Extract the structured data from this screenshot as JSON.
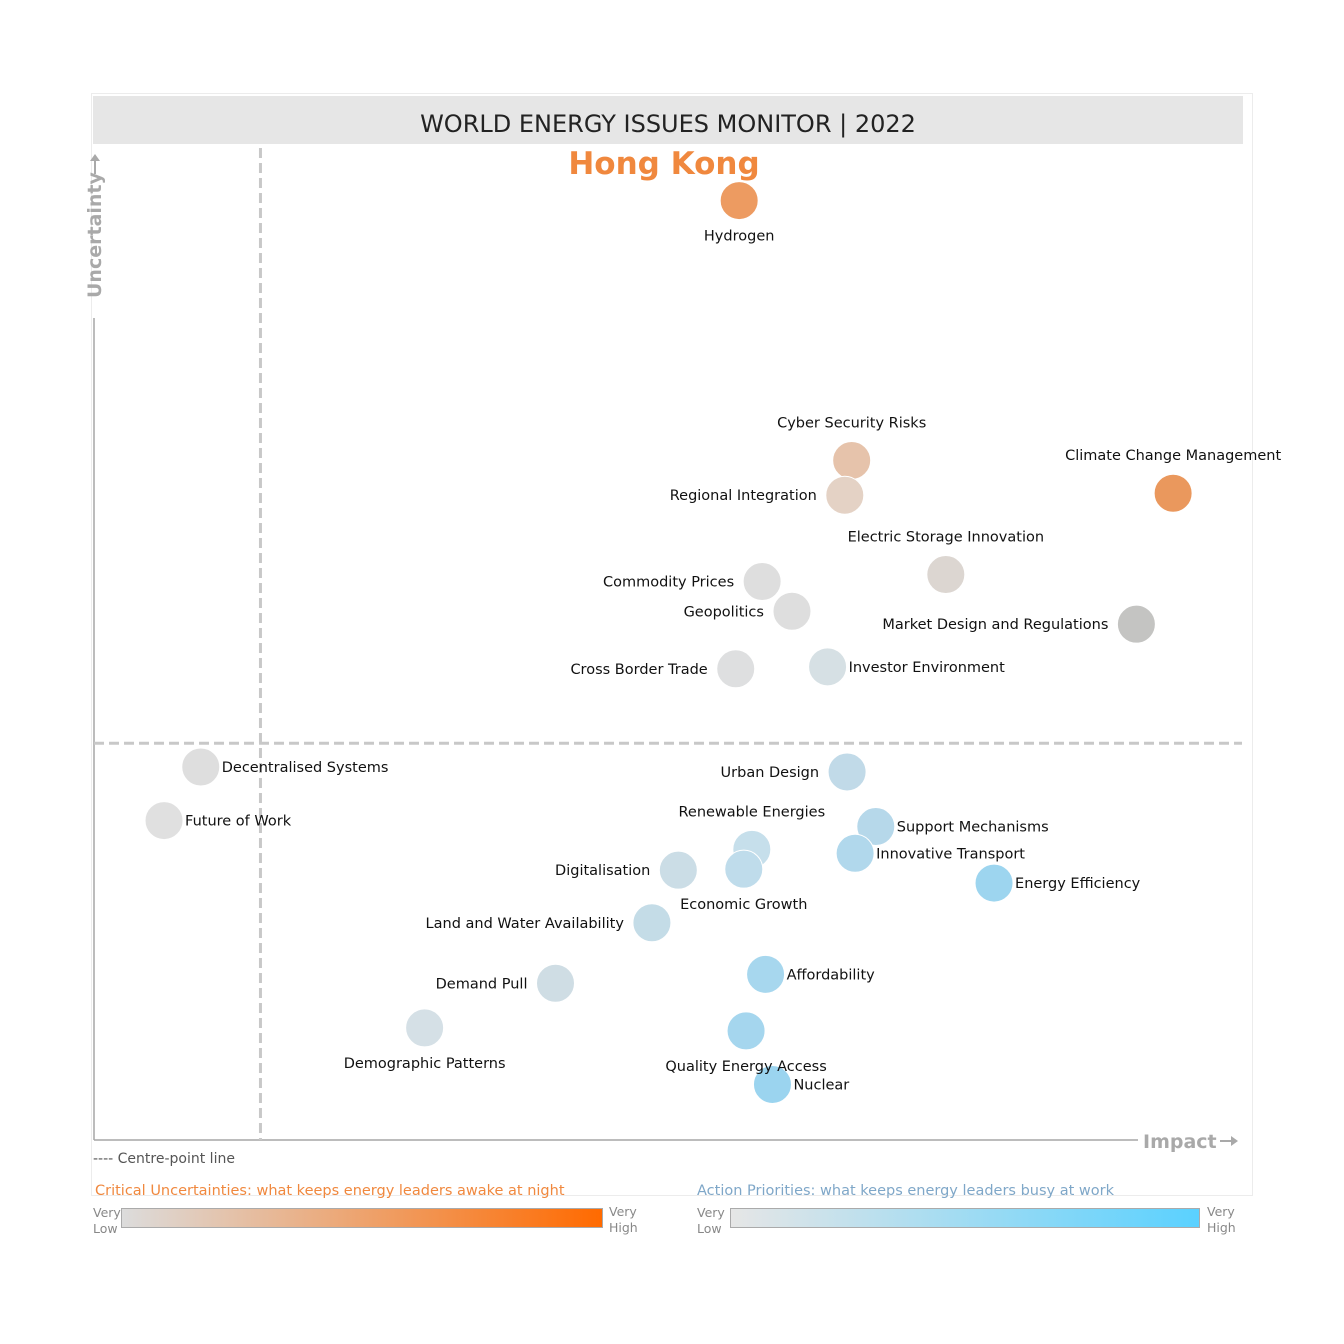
{
  "title": "WORLD ENERGY ISSUES MONITOR | 2022",
  "subtitle": "Hong Kong",
  "centre_note": "---- Centre-point line",
  "legend": {
    "critical_uncertainties": {
      "title": "Critical Uncertainties: what keeps energy leaders awake at night",
      "low_label": [
        "Very",
        "Low"
      ],
      "high_label": [
        "Very",
        "High"
      ],
      "color_low": "#dcdcdc",
      "color_high": "#ff6a00"
    },
    "action_priorities": {
      "title": "Action Priorities: what keeps energy leaders busy at work",
      "low_label": [
        "Very",
        "Low"
      ],
      "high_label": [
        "Very",
        "High"
      ],
      "color_low": "#e6e6e6",
      "color_high": "#5ad1ff"
    }
  },
  "chart_data": {
    "type": "scatter",
    "xlabel": "Impact",
    "ylabel": "Uncertainty",
    "xlim": [
      0,
      100
    ],
    "ylim": [
      0,
      100
    ],
    "centre_point": {
      "x": 14.5,
      "y": 40
    },
    "grid": false,
    "points": [
      {
        "name": "Hydrogen",
        "x": 56.2,
        "y": 94.7,
        "color": "#ed9b61",
        "label_pos": "below"
      },
      {
        "name": "Cyber Security Risks",
        "x": 66.0,
        "y": 68.5,
        "color": "#e6c3ab",
        "label_pos": "above"
      },
      {
        "name": "Regional Integration",
        "x": 65.4,
        "y": 65.0,
        "color": "#e4d2c5",
        "label_pos": "left"
      },
      {
        "name": "Climate Change Management",
        "x": 94.0,
        "y": 65.2,
        "color": "#ea985d",
        "label_pos": "above"
      },
      {
        "name": "Electric Storage Innovation",
        "x": 74.2,
        "y": 57.0,
        "color": "#dcd6d1",
        "label_pos": "above"
      },
      {
        "name": "Commodity Prices",
        "x": 58.2,
        "y": 56.3,
        "color": "#dedede",
        "label_pos": "left"
      },
      {
        "name": "Geopolitics",
        "x": 60.8,
        "y": 53.3,
        "color": "#dedede",
        "label_pos": "left"
      },
      {
        "name": "Market Design and Regulations",
        "x": 90.8,
        "y": 52.0,
        "color": "#c4c4c2",
        "label_pos": "left"
      },
      {
        "name": "Cross Border Trade",
        "x": 55.9,
        "y": 47.5,
        "color": "#dedfe0",
        "label_pos": "left"
      },
      {
        "name": "Investor Environment",
        "x": 63.9,
        "y": 47.7,
        "color": "#d6e0e4",
        "label_pos": "right"
      },
      {
        "name": "Decentralised Systems",
        "x": 9.3,
        "y": 37.6,
        "color": "#dedede",
        "label_pos": "right"
      },
      {
        "name": "Urban Design",
        "x": 65.6,
        "y": 37.1,
        "color": "#c1dae8",
        "label_pos": "left"
      },
      {
        "name": "Future of Work",
        "x": 6.1,
        "y": 32.2,
        "color": "#e0e0e0",
        "label_pos": "right"
      },
      {
        "name": "Support Mechanisms",
        "x": 68.1,
        "y": 31.6,
        "color": "#b6d8ea",
        "label_pos": "right"
      },
      {
        "name": "Renewable Energies",
        "x": 57.3,
        "y": 29.3,
        "color": "#c6dfeb",
        "label_pos": "above"
      },
      {
        "name": "Innovative Transport",
        "x": 66.3,
        "y": 28.9,
        "color": "#b1d8ec",
        "label_pos": "right"
      },
      {
        "name": "Digitalisation",
        "x": 50.9,
        "y": 27.2,
        "color": "#cbdde6",
        "label_pos": "left"
      },
      {
        "name": "Economic Growth",
        "x": 56.6,
        "y": 27.3,
        "color": "#bfdceb",
        "label_pos": "below"
      },
      {
        "name": "Energy Efficiency",
        "x": 78.4,
        "y": 25.9,
        "color": "#9dd5ef",
        "label_pos": "right"
      },
      {
        "name": "Land and Water Availability",
        "x": 48.6,
        "y": 21.9,
        "color": "#c4dce7",
        "label_pos": "left"
      },
      {
        "name": "Affordability",
        "x": 58.5,
        "y": 16.7,
        "color": "#a7d7ee",
        "label_pos": "right"
      },
      {
        "name": "Demand Pull",
        "x": 40.2,
        "y": 15.8,
        "color": "#cfdde4",
        "label_pos": "left"
      },
      {
        "name": "Demographic Patterns",
        "x": 28.8,
        "y": 11.3,
        "color": "#d5e0e6",
        "label_pos": "below"
      },
      {
        "name": "Quality Energy Access",
        "x": 56.8,
        "y": 11.0,
        "color": "#a5d6ee",
        "label_pos": "below"
      },
      {
        "name": "Nuclear",
        "x": 59.1,
        "y": 5.6,
        "color": "#9bd4ef",
        "label_pos": "right"
      }
    ]
  }
}
